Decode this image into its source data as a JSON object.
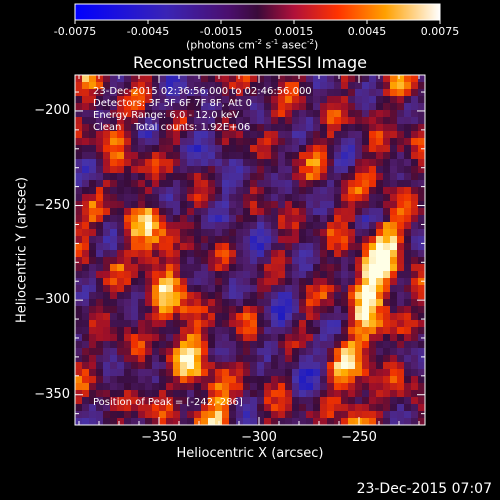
{
  "chart_data": {
    "type": "heatmap",
    "title": "Reconstructed RHESSI Image",
    "xlabel": "Heliocentric X (arcsec)",
    "ylabel": "Heliocentric Y (arcsec)",
    "xlim": [
      -392,
      -217
    ],
    "ylim": [
      -366,
      -181
    ],
    "x_ticks": [
      -350,
      -300,
      -250
    ],
    "y_ticks": [
      -200,
      -250,
      -300,
      -350
    ],
    "colorbar": {
      "range": [
        -0.0075,
        0.0075
      ],
      "ticks": [
        "-0.0075",
        "-0.0045",
        "-0.0015",
        "0.0015",
        "0.0045",
        "0.0075"
      ],
      "units": "(photons cm",
      "units_sup1": "-2",
      "units_mid": " s",
      "units_sup2": "-1",
      "units_end": " asec",
      "units_sup3": "-2",
      "units_close": ")"
    },
    "annotations": {
      "line1": "23-Dec-2015 02:36:56.000 to 02:46:56.000",
      "line2": "Detectors: 3F 5F 6F 7F 8F, Att 0",
      "line3": "Energy Range: 6.0 - 12.0 keV",
      "line4": "Clean    Total counts: 1.92E+06",
      "peak": "Position of Peak = [-242,-286]"
    },
    "peak_position": [
      -242,
      -286
    ],
    "total_counts": "1.92E+06",
    "grid": false
  },
  "footer": {
    "timestamp": "23-Dec-2015 07:07"
  }
}
